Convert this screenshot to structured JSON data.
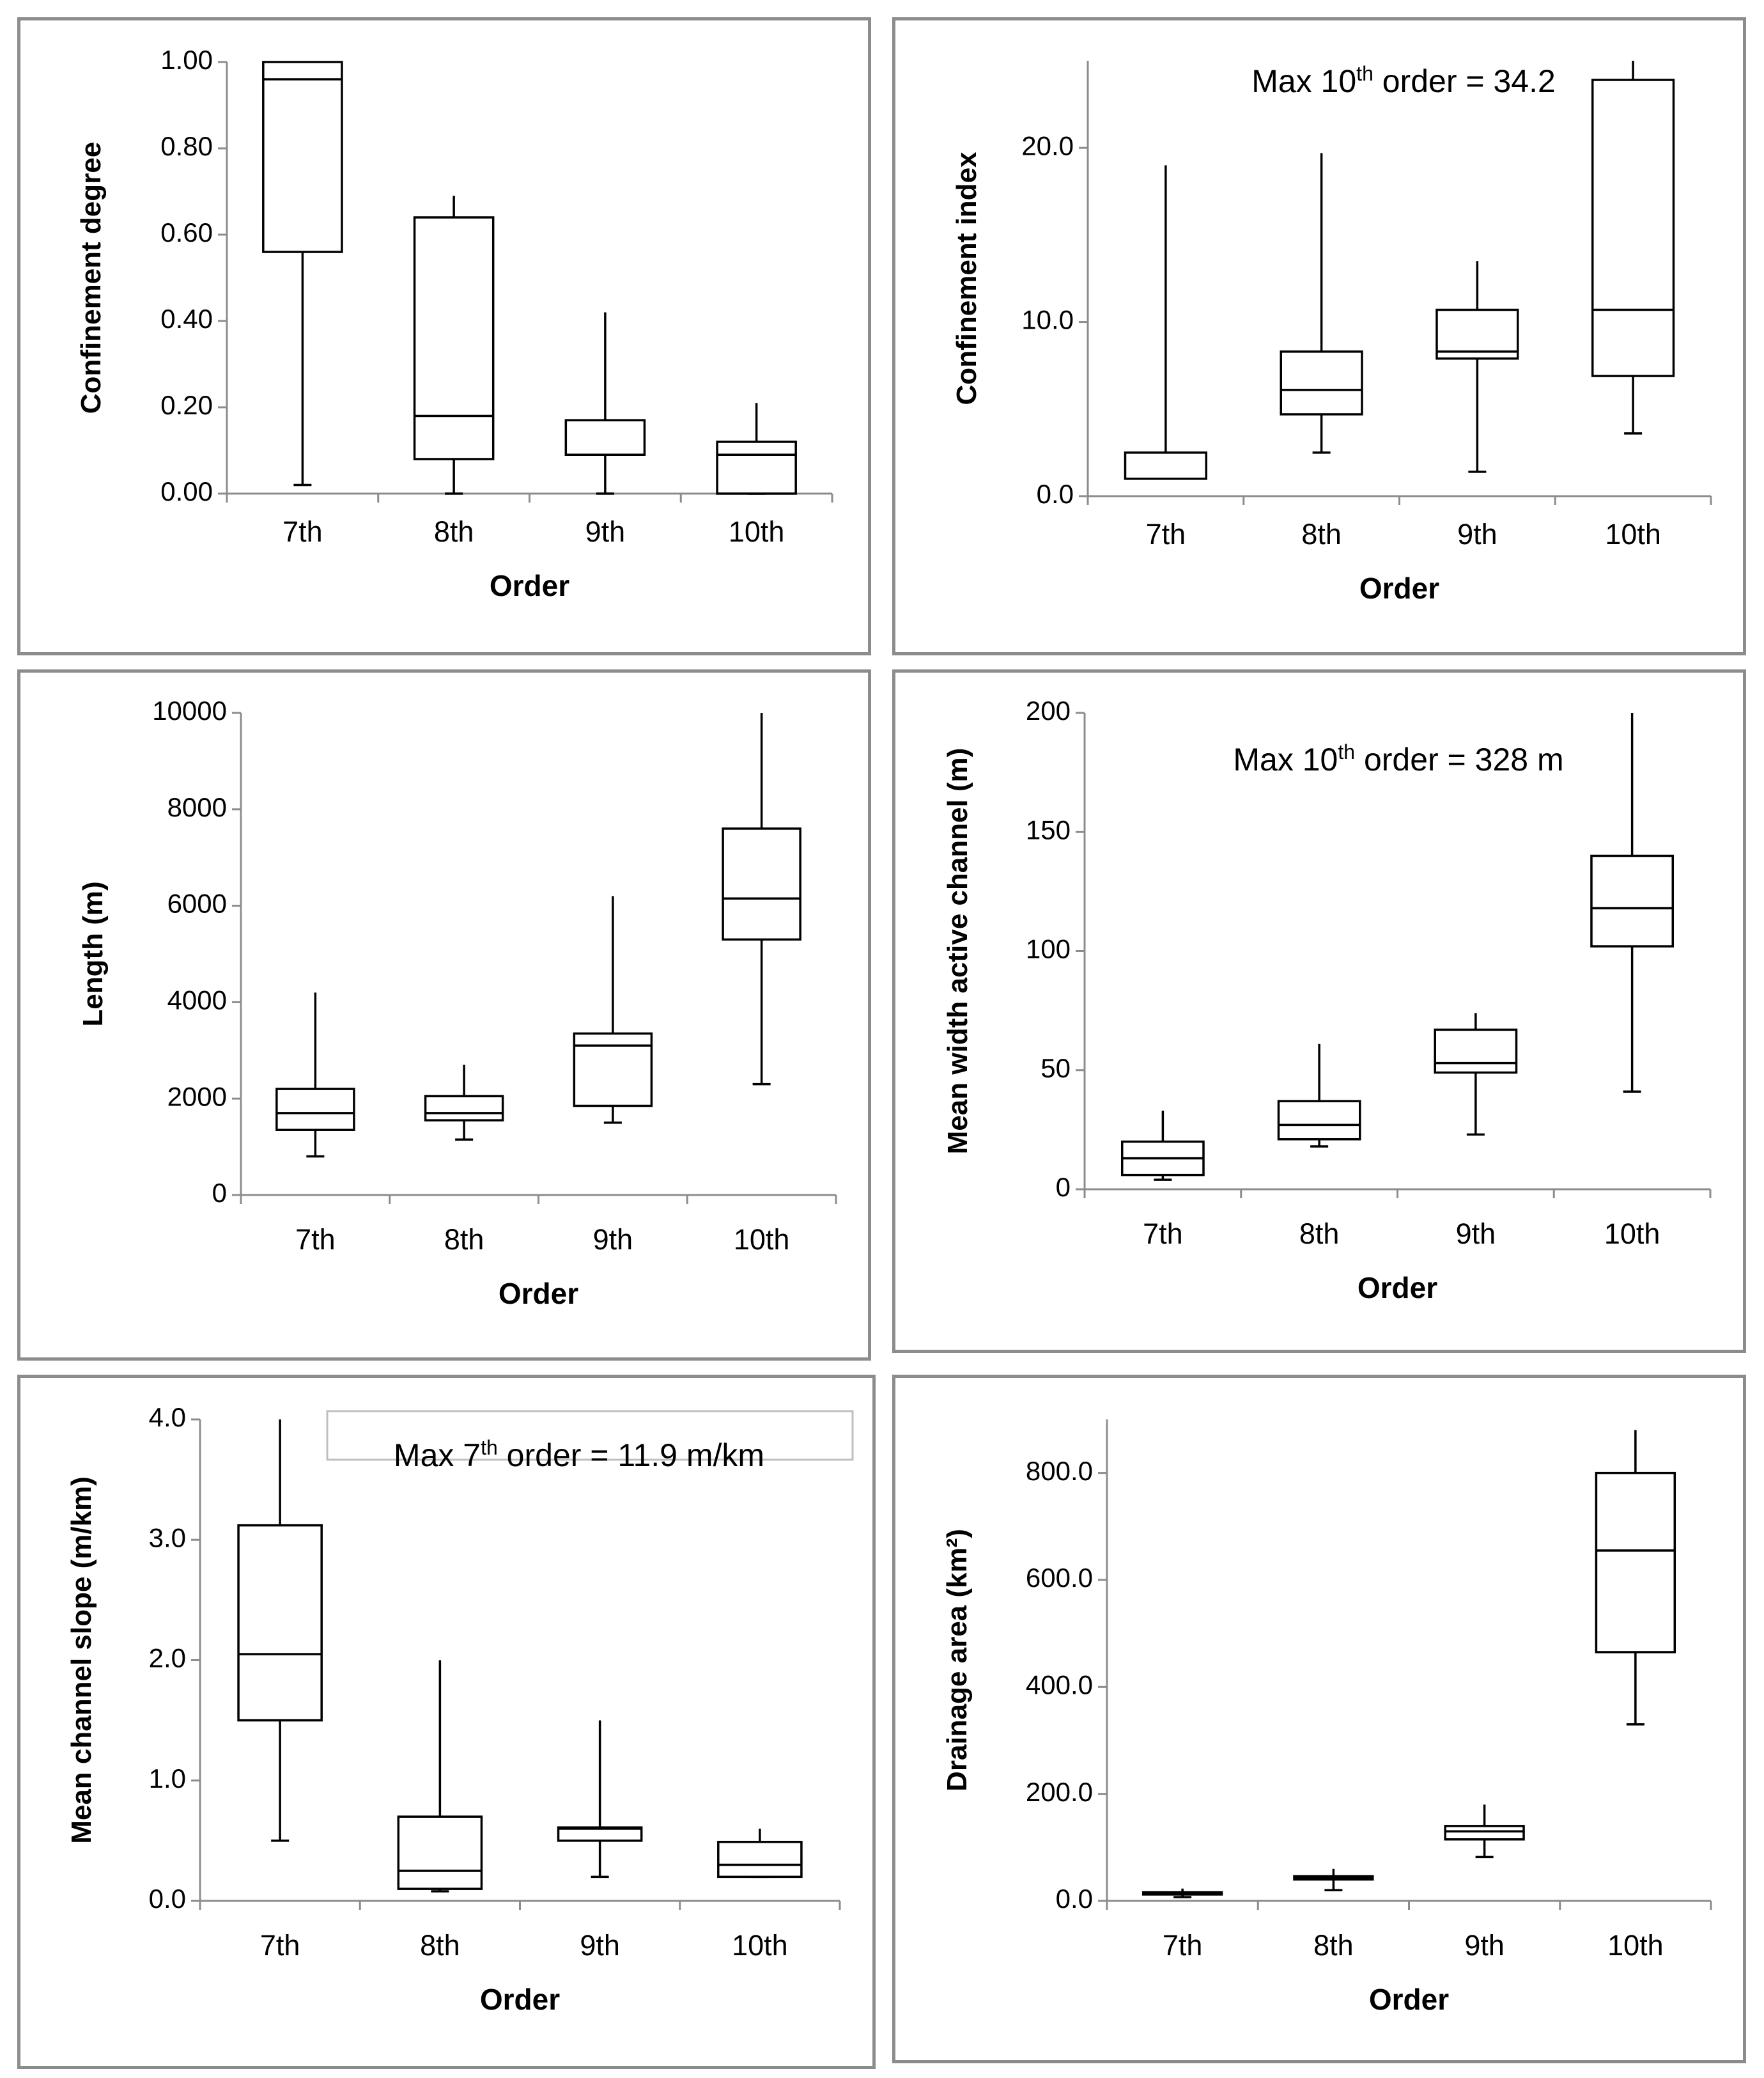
{
  "chart_data": [
    {
      "type": "box",
      "title": "",
      "xlabel": "Order",
      "ylabel": "Confinement degree",
      "categories": [
        "7th",
        "8th",
        "9th",
        "10th"
      ],
      "ylim": [
        0,
        1
      ],
      "yticks": [
        0,
        0.2,
        0.4,
        0.6,
        0.8,
        1.0
      ],
      "ytick_labels": [
        "0.00",
        "0.20",
        "0.40",
        "0.60",
        "0.80",
        "1.00"
      ],
      "boxes": [
        {
          "min": 0.02,
          "q1": 0.56,
          "median": 0.96,
          "q3": 1.0,
          "max": 1.0
        },
        {
          "min": 0.0,
          "q1": 0.08,
          "median": 0.18,
          "q3": 0.64,
          "max": 0.69
        },
        {
          "min": 0.0,
          "q1": 0.09,
          "median": 0.09,
          "q3": 0.17,
          "max": 0.42
        },
        {
          "min": 0.0,
          "q1": 0.0,
          "median": 0.09,
          "q3": 0.12,
          "max": 0.21
        }
      ],
      "annotation": ""
    },
    {
      "type": "box",
      "title": "",
      "xlabel": "Order",
      "ylabel": "Confinement index",
      "categories": [
        "7th",
        "8th",
        "9th",
        "10th"
      ],
      "ylim": [
        0,
        25
      ],
      "yticks": [
        0,
        10,
        20
      ],
      "ytick_labels": [
        "0.0",
        "10.0",
        "20.0"
      ],
      "boxes": [
        {
          "min": 1.0,
          "q1": 1.0,
          "median": 1.0,
          "q3": 2.5,
          "max": 19.0
        },
        {
          "min": 2.5,
          "q1": 4.7,
          "median": 6.1,
          "q3": 8.3,
          "max": 19.7
        },
        {
          "min": 1.4,
          "q1": 7.9,
          "median": 8.3,
          "q3": 10.7,
          "max": 13.5
        },
        {
          "min": 3.6,
          "q1": 6.9,
          "median": 10.7,
          "q3": 23.9,
          "max": 25.0
        }
      ],
      "annotation": {
        "pre": "Max 10",
        "sup": "th",
        "post": " order = 34.2"
      }
    },
    {
      "type": "box",
      "title": "",
      "xlabel": "Order",
      "ylabel": "Length (m)",
      "categories": [
        "7th",
        "8th",
        "9th",
        "10th"
      ],
      "ylim": [
        0,
        10000
      ],
      "yticks": [
        0,
        2000,
        4000,
        6000,
        8000,
        10000
      ],
      "ytick_labels": [
        "0",
        "2000",
        "4000",
        "6000",
        "8000",
        "10000"
      ],
      "boxes": [
        {
          "min": 800,
          "q1": 1350,
          "median": 1700,
          "q3": 2200,
          "max": 4200
        },
        {
          "min": 1150,
          "q1": 1550,
          "median": 1700,
          "q3": 2050,
          "max": 2700
        },
        {
          "min": 1500,
          "q1": 1850,
          "median": 3100,
          "q3": 3350,
          "max": 6200
        },
        {
          "min": 2300,
          "q1": 5300,
          "median": 6150,
          "q3": 7600,
          "max": 10000
        }
      ],
      "annotation": ""
    },
    {
      "type": "box",
      "title": "",
      "xlabel": "Order",
      "ylabel": "Mean width active channel (m)",
      "categories": [
        "7th",
        "8th",
        "9th",
        "10th"
      ],
      "ylim": [
        0,
        200
      ],
      "yticks": [
        0,
        50,
        100,
        150,
        200
      ],
      "ytick_labels": [
        "0",
        "50",
        "100",
        "150",
        "200"
      ],
      "boxes": [
        {
          "min": 4,
          "q1": 6,
          "median": 13,
          "q3": 20,
          "max": 33
        },
        {
          "min": 18,
          "q1": 21,
          "median": 27,
          "q3": 37,
          "max": 61
        },
        {
          "min": 23,
          "q1": 49,
          "median": 53,
          "q3": 67,
          "max": 74
        },
        {
          "min": 41,
          "q1": 102,
          "median": 118,
          "q3": 140,
          "max": 200
        }
      ],
      "annotation": {
        "pre": "Max 10",
        "sup": "th",
        "post": " order = 328 m"
      }
    },
    {
      "type": "box",
      "title": "",
      "xlabel": "Order",
      "ylabel": "Mean channel slope (m/km)",
      "categories": [
        "7th",
        "8th",
        "9th",
        "10th"
      ],
      "ylim": [
        0,
        4
      ],
      "yticks": [
        0,
        1,
        2,
        3,
        4
      ],
      "ytick_labels": [
        "0.0",
        "1.0",
        "2.0",
        "3.0",
        "4.0"
      ],
      "boxes": [
        {
          "min": 0.5,
          "q1": 1.5,
          "median": 2.05,
          "q3": 3.12,
          "max": 4.0
        },
        {
          "min": 0.08,
          "q1": 0.1,
          "median": 0.25,
          "q3": 0.7,
          "max": 2.0
        },
        {
          "min": 0.2,
          "q1": 0.5,
          "median": 0.6,
          "q3": 0.61,
          "max": 1.5
        },
        {
          "min": 0.2,
          "q1": 0.2,
          "median": 0.3,
          "q3": 0.49,
          "max": 0.6
        }
      ],
      "annotation": {
        "pre": "Max 7",
        "sup": "th",
        "post": " order  = 11.9 m/km"
      }
    },
    {
      "type": "box",
      "title": "",
      "xlabel": "Order",
      "ylabel": "Drainage area (km²)",
      "categories": [
        "7th",
        "8th",
        "9th",
        "10th"
      ],
      "ylim": [
        0,
        900
      ],
      "yticks": [
        0,
        200,
        400,
        600,
        800
      ],
      "ytick_labels": [
        "0.0",
        "200.0",
        "400.0",
        "600.0",
        "800.0"
      ],
      "boxes": [
        {
          "min": 7,
          "q1": 12,
          "median": 14,
          "q3": 16,
          "max": 23
        },
        {
          "min": 20,
          "q1": 40,
          "median": 43,
          "q3": 46,
          "max": 60
        },
        {
          "min": 82,
          "q1": 115,
          "median": 130,
          "q3": 140,
          "max": 180
        },
        {
          "min": 330,
          "q1": 465,
          "median": 655,
          "q3": 800,
          "max": 880
        }
      ],
      "annotation": ""
    }
  ]
}
